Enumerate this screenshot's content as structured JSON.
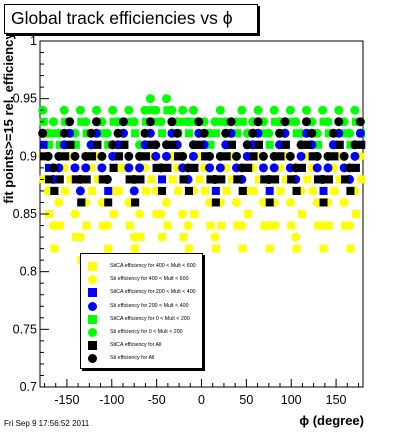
{
  "title": "Global track efficiencies vs ϕ",
  "timestamp": "Fri Sep  9 17:56:52 2011",
  "chart_data": {
    "type": "scatter",
    "xlabel": "ϕ (degree)",
    "ylabel": "fit points>=15 rel. efficiency",
    "xlim": [
      -180,
      180
    ],
    "ylim": [
      0.7,
      1.0
    ],
    "xticks": [
      -150,
      -100,
      -50,
      0,
      50,
      100,
      150
    ],
    "yticks": [
      0.7,
      0.75,
      0.8,
      0.85,
      0.9,
      0.95,
      1
    ],
    "ytick_labels": [
      "0.7",
      "0.75",
      "0.8",
      "0.85",
      "0.9",
      "0.95",
      "1"
    ],
    "grid": false,
    "legend_position": "bottom-left",
    "legend": [
      {
        "label": "StiCA efficiency  for 400 < Mult < 600",
        "color": "#ffff00",
        "marker": "square"
      },
      {
        "label": "Sti efficiency  for 400 < Mult < 600",
        "color": "#ffff00",
        "marker": "circle"
      },
      {
        "label": "StiCA efficiency  for 200 < Mult < 400",
        "color": "#0000ff",
        "marker": "square"
      },
      {
        "label": "Sti efficiency  for 200 < Mult < 400",
        "color": "#0000ff",
        "marker": "circle"
      },
      {
        "label": "StiCA efficiency  for 0 < Mult < 200",
        "color": "#00ff00",
        "marker": "square"
      },
      {
        "label": "Sti efficiency  for 0 < Mult < 200",
        "color": "#00ff00",
        "marker": "circle"
      },
      {
        "label": "StiCA efficiency  for All",
        "color": "#000000",
        "marker": "square"
      },
      {
        "label": "Sti efficiency  for All",
        "color": "#000000",
        "marker": "circle"
      }
    ],
    "series": [
      {
        "name": "Sti efficiency  for 0 < Mult < 200",
        "color": "#00ff00",
        "marker": "circle",
        "x": [
          -177,
          -171,
          -165,
          -159,
          -153,
          -147,
          -141,
          -135,
          -129,
          -123,
          -117,
          -111,
          -105,
          -99,
          -93,
          -87,
          -81,
          -75,
          -69,
          -63,
          -57,
          -51,
          -45,
          -39,
          -33,
          -27,
          -21,
          -15,
          -9,
          -3,
          3,
          9,
          15,
          21,
          27,
          33,
          39,
          45,
          51,
          57,
          63,
          69,
          75,
          81,
          87,
          93,
          99,
          105,
          111,
          117,
          123,
          129,
          135,
          141,
          147,
          153,
          159,
          165,
          171,
          177
        ],
        "y": [
          0.94,
          0.92,
          0.93,
          0.92,
          0.94,
          0.93,
          0.92,
          0.94,
          0.93,
          0.91,
          0.94,
          0.93,
          0.92,
          0.94,
          0.93,
          0.92,
          0.94,
          0.93,
          0.91,
          0.94,
          0.95,
          0.94,
          0.93,
          0.95,
          0.94,
          0.93,
          0.94,
          0.93,
          0.94,
          0.92,
          0.93,
          0.92,
          0.93,
          0.94,
          0.93,
          0.92,
          0.93,
          0.94,
          0.92,
          0.93,
          0.94,
          0.93,
          0.92,
          0.94,
          0.93,
          0.92,
          0.94,
          0.93,
          0.92,
          0.94,
          0.93,
          0.92,
          0.94,
          0.93,
          0.92,
          0.94,
          0.93,
          0.92,
          0.94,
          0.93
        ]
      },
      {
        "name": "StiCA efficiency  for 0 < Mult < 200",
        "color": "#00ff00",
        "marker": "square",
        "x": [
          -176,
          -170,
          -164,
          -158,
          -152,
          -146,
          -140,
          -134,
          -128,
          -122,
          -116,
          -110,
          -104,
          -98,
          -92,
          -86,
          -80,
          -74,
          -68,
          -62,
          -56,
          -50,
          -44,
          -38,
          -32,
          -26,
          -20,
          -14,
          -8,
          -2,
          4,
          10,
          16,
          22,
          28,
          34,
          40,
          46,
          52,
          58,
          64,
          70,
          76,
          82,
          88,
          94,
          100,
          106,
          112,
          118,
          124,
          130,
          136,
          142,
          148,
          154,
          160,
          166,
          172,
          178
        ],
        "y": [
          0.93,
          0.91,
          0.92,
          0.91,
          0.93,
          0.92,
          0.91,
          0.93,
          0.92,
          0.9,
          0.93,
          0.92,
          0.91,
          0.93,
          0.92,
          0.91,
          0.93,
          0.92,
          0.9,
          0.93,
          0.94,
          0.93,
          0.92,
          0.94,
          0.93,
          0.92,
          0.93,
          0.92,
          0.93,
          0.91,
          0.92,
          0.91,
          0.92,
          0.93,
          0.92,
          0.91,
          0.92,
          0.93,
          0.91,
          0.92,
          0.93,
          0.92,
          0.91,
          0.93,
          0.92,
          0.91,
          0.93,
          0.92,
          0.91,
          0.93,
          0.92,
          0.91,
          0.93,
          0.92,
          0.91,
          0.93,
          0.92,
          0.91,
          0.93,
          0.92
        ]
      },
      {
        "name": "Sti efficiency  for 400 < Mult < 600",
        "color": "#ffff00",
        "marker": "circle",
        "x": [
          -177,
          -171,
          -165,
          -159,
          -153,
          -147,
          -141,
          -135,
          -129,
          -123,
          -117,
          -111,
          -105,
          -99,
          -93,
          -87,
          -81,
          -75,
          -69,
          -63,
          -57,
          -51,
          -45,
          -39,
          -33,
          -27,
          -21,
          -15,
          -9,
          -3,
          3,
          9,
          15,
          21,
          27,
          33,
          39,
          45,
          51,
          57,
          63,
          69,
          75,
          81,
          87,
          93,
          99,
          105,
          111,
          117,
          123,
          129,
          135,
          141,
          147,
          153,
          159,
          165,
          171,
          177
        ],
        "y": [
          0.9,
          0.87,
          0.84,
          0.86,
          0.89,
          0.9,
          0.85,
          0.83,
          0.86,
          0.89,
          0.9,
          0.86,
          0.84,
          0.87,
          0.89,
          0.91,
          0.86,
          0.83,
          0.85,
          0.89,
          0.9,
          0.87,
          0.85,
          0.86,
          0.9,
          0.89,
          0.85,
          0.84,
          0.87,
          0.9,
          0.89,
          0.86,
          0.83,
          0.86,
          0.89,
          0.9,
          0.86,
          0.84,
          0.87,
          0.89,
          0.9,
          0.86,
          0.84,
          0.86,
          0.89,
          0.9,
          0.86,
          0.83,
          0.87,
          0.9,
          0.89,
          0.86,
          0.84,
          0.86,
          0.89,
          0.9,
          0.86,
          0.84,
          0.87,
          0.9
        ]
      },
      {
        "name": "StiCA efficiency  for 400 < Mult < 600",
        "color": "#ffff00",
        "marker": "square",
        "x": [
          -176,
          -170,
          -164,
          -158,
          -152,
          -146,
          -140,
          -134,
          -128,
          -122,
          -116,
          -110,
          -104,
          -98,
          -92,
          -86,
          -80,
          -74,
          -68,
          -62,
          -56,
          -50,
          -44,
          -38,
          -32,
          -26,
          -20,
          -14,
          -8,
          -2,
          4,
          10,
          16,
          22,
          28,
          34,
          40,
          46,
          52,
          58,
          64,
          70,
          76,
          82,
          88,
          94,
          100,
          106,
          112,
          118,
          124,
          130,
          136,
          142,
          148,
          154,
          160,
          166,
          172,
          178
        ],
        "y": [
          0.88,
          0.85,
          0.82,
          0.84,
          0.87,
          0.88,
          0.83,
          0.81,
          0.84,
          0.87,
          0.88,
          0.84,
          0.82,
          0.85,
          0.87,
          0.89,
          0.84,
          0.82,
          0.83,
          0.87,
          0.88,
          0.85,
          0.83,
          0.84,
          0.88,
          0.87,
          0.83,
          0.82,
          0.85,
          0.88,
          0.87,
          0.84,
          0.82,
          0.84,
          0.87,
          0.88,
          0.84,
          0.82,
          0.85,
          0.87,
          0.88,
          0.84,
          0.82,
          0.84,
          0.87,
          0.88,
          0.84,
          0.82,
          0.85,
          0.88,
          0.87,
          0.84,
          0.82,
          0.84,
          0.87,
          0.88,
          0.84,
          0.82,
          0.85,
          0.88
        ]
      },
      {
        "name": "Sti efficiency  for 200 < Mult < 400",
        "color": "#0000ff",
        "marker": "circle",
        "x": [
          -177,
          -171,
          -165,
          -159,
          -153,
          -147,
          -141,
          -135,
          -129,
          -123,
          -117,
          -111,
          -105,
          -99,
          -93,
          -87,
          -81,
          -75,
          -69,
          -63,
          -57,
          -51,
          -45,
          -39,
          -33,
          -27,
          -21,
          -15,
          -9,
          -3,
          3,
          9,
          15,
          21,
          27,
          33,
          39,
          45,
          51,
          57,
          63,
          69,
          75,
          81,
          87,
          93,
          99,
          105,
          111,
          117,
          123,
          129,
          135,
          141,
          147,
          153,
          159,
          165,
          171,
          177
        ],
        "y": [
          0.92,
          0.9,
          0.88,
          0.89,
          0.91,
          0.92,
          0.89,
          0.87,
          0.89,
          0.91,
          0.92,
          0.89,
          0.88,
          0.9,
          0.91,
          0.92,
          0.89,
          0.87,
          0.89,
          0.91,
          0.92,
          0.9,
          0.89,
          0.9,
          0.92,
          0.91,
          0.89,
          0.88,
          0.9,
          0.92,
          0.91,
          0.89,
          0.88,
          0.89,
          0.91,
          0.92,
          0.89,
          0.88,
          0.9,
          0.91,
          0.92,
          0.89,
          0.88,
          0.89,
          0.91,
          0.92,
          0.89,
          0.88,
          0.9,
          0.92,
          0.91,
          0.89,
          0.88,
          0.89,
          0.91,
          0.92,
          0.89,
          0.88,
          0.9,
          0.92
        ]
      },
      {
        "name": "StiCA efficiency  for 200 < Mult < 400",
        "color": "#0000ff",
        "marker": "square",
        "x": [
          -176,
          -170,
          -164,
          -158,
          -152,
          -146,
          -140,
          -134,
          -128,
          -122,
          -116,
          -110,
          -104,
          -98,
          -92,
          -86,
          -80,
          -74,
          -68,
          -62,
          -56,
          -50,
          -44,
          -38,
          -32,
          -26,
          -20,
          -14,
          -8,
          -2,
          4,
          10,
          16,
          22,
          28,
          34,
          40,
          46,
          52,
          58,
          64,
          70,
          76,
          82,
          88,
          94,
          100,
          106,
          112,
          118,
          124,
          130,
          136,
          142,
          148,
          154,
          160,
          166,
          172,
          178
        ],
        "y": [
          0.91,
          0.89,
          0.87,
          0.88,
          0.9,
          0.91,
          0.88,
          0.86,
          0.88,
          0.9,
          0.91,
          0.88,
          0.87,
          0.89,
          0.9,
          0.91,
          0.88,
          0.86,
          0.88,
          0.9,
          0.91,
          0.89,
          0.88,
          0.89,
          0.91,
          0.9,
          0.88,
          0.87,
          0.89,
          0.91,
          0.9,
          0.88,
          0.87,
          0.88,
          0.9,
          0.91,
          0.88,
          0.87,
          0.89,
          0.9,
          0.91,
          0.88,
          0.87,
          0.88,
          0.9,
          0.91,
          0.88,
          0.87,
          0.89,
          0.91,
          0.9,
          0.88,
          0.87,
          0.88,
          0.9,
          0.91,
          0.88,
          0.87,
          0.89,
          0.91
        ]
      },
      {
        "name": "Sti efficiency  for All",
        "color": "#000000",
        "marker": "circle",
        "x": [
          -177,
          -171,
          -165,
          -159,
          -153,
          -147,
          -141,
          -135,
          -129,
          -123,
          -117,
          -111,
          -105,
          -99,
          -93,
          -87,
          -81,
          -75,
          -69,
          -63,
          -57,
          -51,
          -45,
          -39,
          -33,
          -27,
          -21,
          -15,
          -9,
          -3,
          3,
          9,
          15,
          21,
          27,
          33,
          39,
          45,
          51,
          57,
          63,
          69,
          75,
          81,
          87,
          93,
          99,
          105,
          111,
          117,
          123,
          129,
          135,
          141,
          147,
          153,
          159,
          165,
          171,
          177
        ],
        "y": [
          0.92,
          0.9,
          0.89,
          0.9,
          0.92,
          0.93,
          0.9,
          0.88,
          0.9,
          0.92,
          0.93,
          0.9,
          0.88,
          0.91,
          0.92,
          0.93,
          0.9,
          0.88,
          0.9,
          0.92,
          0.93,
          0.91,
          0.89,
          0.91,
          0.93,
          0.92,
          0.9,
          0.89,
          0.91,
          0.93,
          0.92,
          0.9,
          0.88,
          0.9,
          0.92,
          0.93,
          0.9,
          0.89,
          0.91,
          0.92,
          0.93,
          0.9,
          0.88,
          0.9,
          0.92,
          0.93,
          0.9,
          0.89,
          0.91,
          0.93,
          0.92,
          0.9,
          0.88,
          0.9,
          0.92,
          0.93,
          0.9,
          0.89,
          0.91,
          0.93
        ]
      },
      {
        "name": "StiCA efficiency  for All",
        "color": "#000000",
        "marker": "square",
        "x": [
          -176,
          -170,
          -164,
          -158,
          -152,
          -146,
          -140,
          -134,
          -128,
          -122,
          -116,
          -110,
          -104,
          -98,
          -92,
          -86,
          -80,
          -74,
          -68,
          -62,
          -56,
          -50,
          -44,
          -38,
          -32,
          -26,
          -20,
          -14,
          -8,
          -2,
          4,
          10,
          16,
          22,
          28,
          34,
          40,
          46,
          52,
          58,
          64,
          70,
          76,
          82,
          88,
          94,
          100,
          106,
          112,
          118,
          124,
          130,
          136,
          142,
          148,
          154,
          160,
          166,
          172,
          178
        ],
        "y": [
          0.9,
          0.88,
          0.87,
          0.88,
          0.9,
          0.91,
          0.88,
          0.86,
          0.88,
          0.9,
          0.91,
          0.88,
          0.86,
          0.89,
          0.9,
          0.91,
          0.88,
          0.86,
          0.88,
          0.9,
          0.91,
          0.89,
          0.87,
          0.89,
          0.91,
          0.9,
          0.88,
          0.87,
          0.89,
          0.91,
          0.9,
          0.88,
          0.86,
          0.88,
          0.9,
          0.91,
          0.88,
          0.87,
          0.89,
          0.9,
          0.91,
          0.88,
          0.86,
          0.88,
          0.9,
          0.91,
          0.88,
          0.87,
          0.89,
          0.91,
          0.9,
          0.88,
          0.86,
          0.88,
          0.9,
          0.91,
          0.88,
          0.87,
          0.89,
          0.91
        ]
      }
    ]
  }
}
